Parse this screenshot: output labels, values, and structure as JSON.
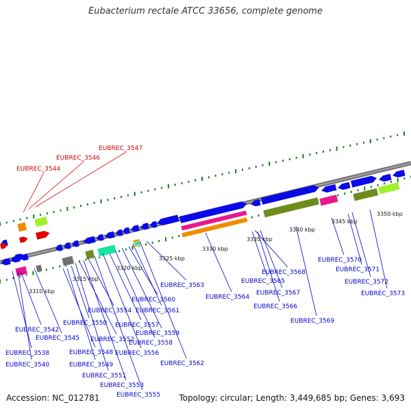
{
  "title": "Eubacterium rectale ATCC 33656, complete genome",
  "accession": "Accession: NC_012781",
  "topology": "Topology: circular; Length: 3,449,685 bp; Genes: 3,693",
  "colors": {
    "backbone": "#8a8a8a",
    "cds": "#0a0ae6",
    "rna": "#e00000",
    "gene_label": "#0000c8",
    "rna_label": "#c80000",
    "tick": "#1a7a1a",
    "cog_magenta": "#e8188c",
    "cog_orange": "#f08c00",
    "cog_olive": "#6e8c1e",
    "cog_lime": "#a0f02a",
    "cog_teal": "#18e6a0",
    "cog_gray": "#707070"
  },
  "ruler_labels": [
    "3310 kbp",
    "3315 kbp",
    "3320 kbp",
    "3325 kbp",
    "3330 kbp",
    "3335 kbp",
    "3340 kbp",
    "3345 kbp",
    "3350 kbp"
  ],
  "rna_labels": [
    "EUBREC_3544",
    "EUBREC_3546",
    "EUBREC_3547"
  ],
  "gene_labels": [
    "EUBREC_3538",
    "EUBREC_3540",
    "EUBREC_3542",
    "EUBREC_3545",
    "EUBREC_3548",
    "EUBREC_3549",
    "EUBREC_3550",
    "EUBREC_3551",
    "EUBREC_3552",
    "EUBREC_3553",
    "EUBREC_3554",
    "EUBREC_3555",
    "EUBREC_3556",
    "EUBREC_3557",
    "EUBREC_3558",
    "EUBREC_3559",
    "EUBREC_3560",
    "EUBREC_3561",
    "EUBREC_3562",
    "EUBREC_3563",
    "EUBREC_3564",
    "EUBREC_3565",
    "EUBREC_3566",
    "EUBREC_3567",
    "EUBREC_3568",
    "EUBREC_3569",
    "EUBREC_3570",
    "EUBREC_3571",
    "EUBREC_3572",
    "EUBREC_3573"
  ]
}
